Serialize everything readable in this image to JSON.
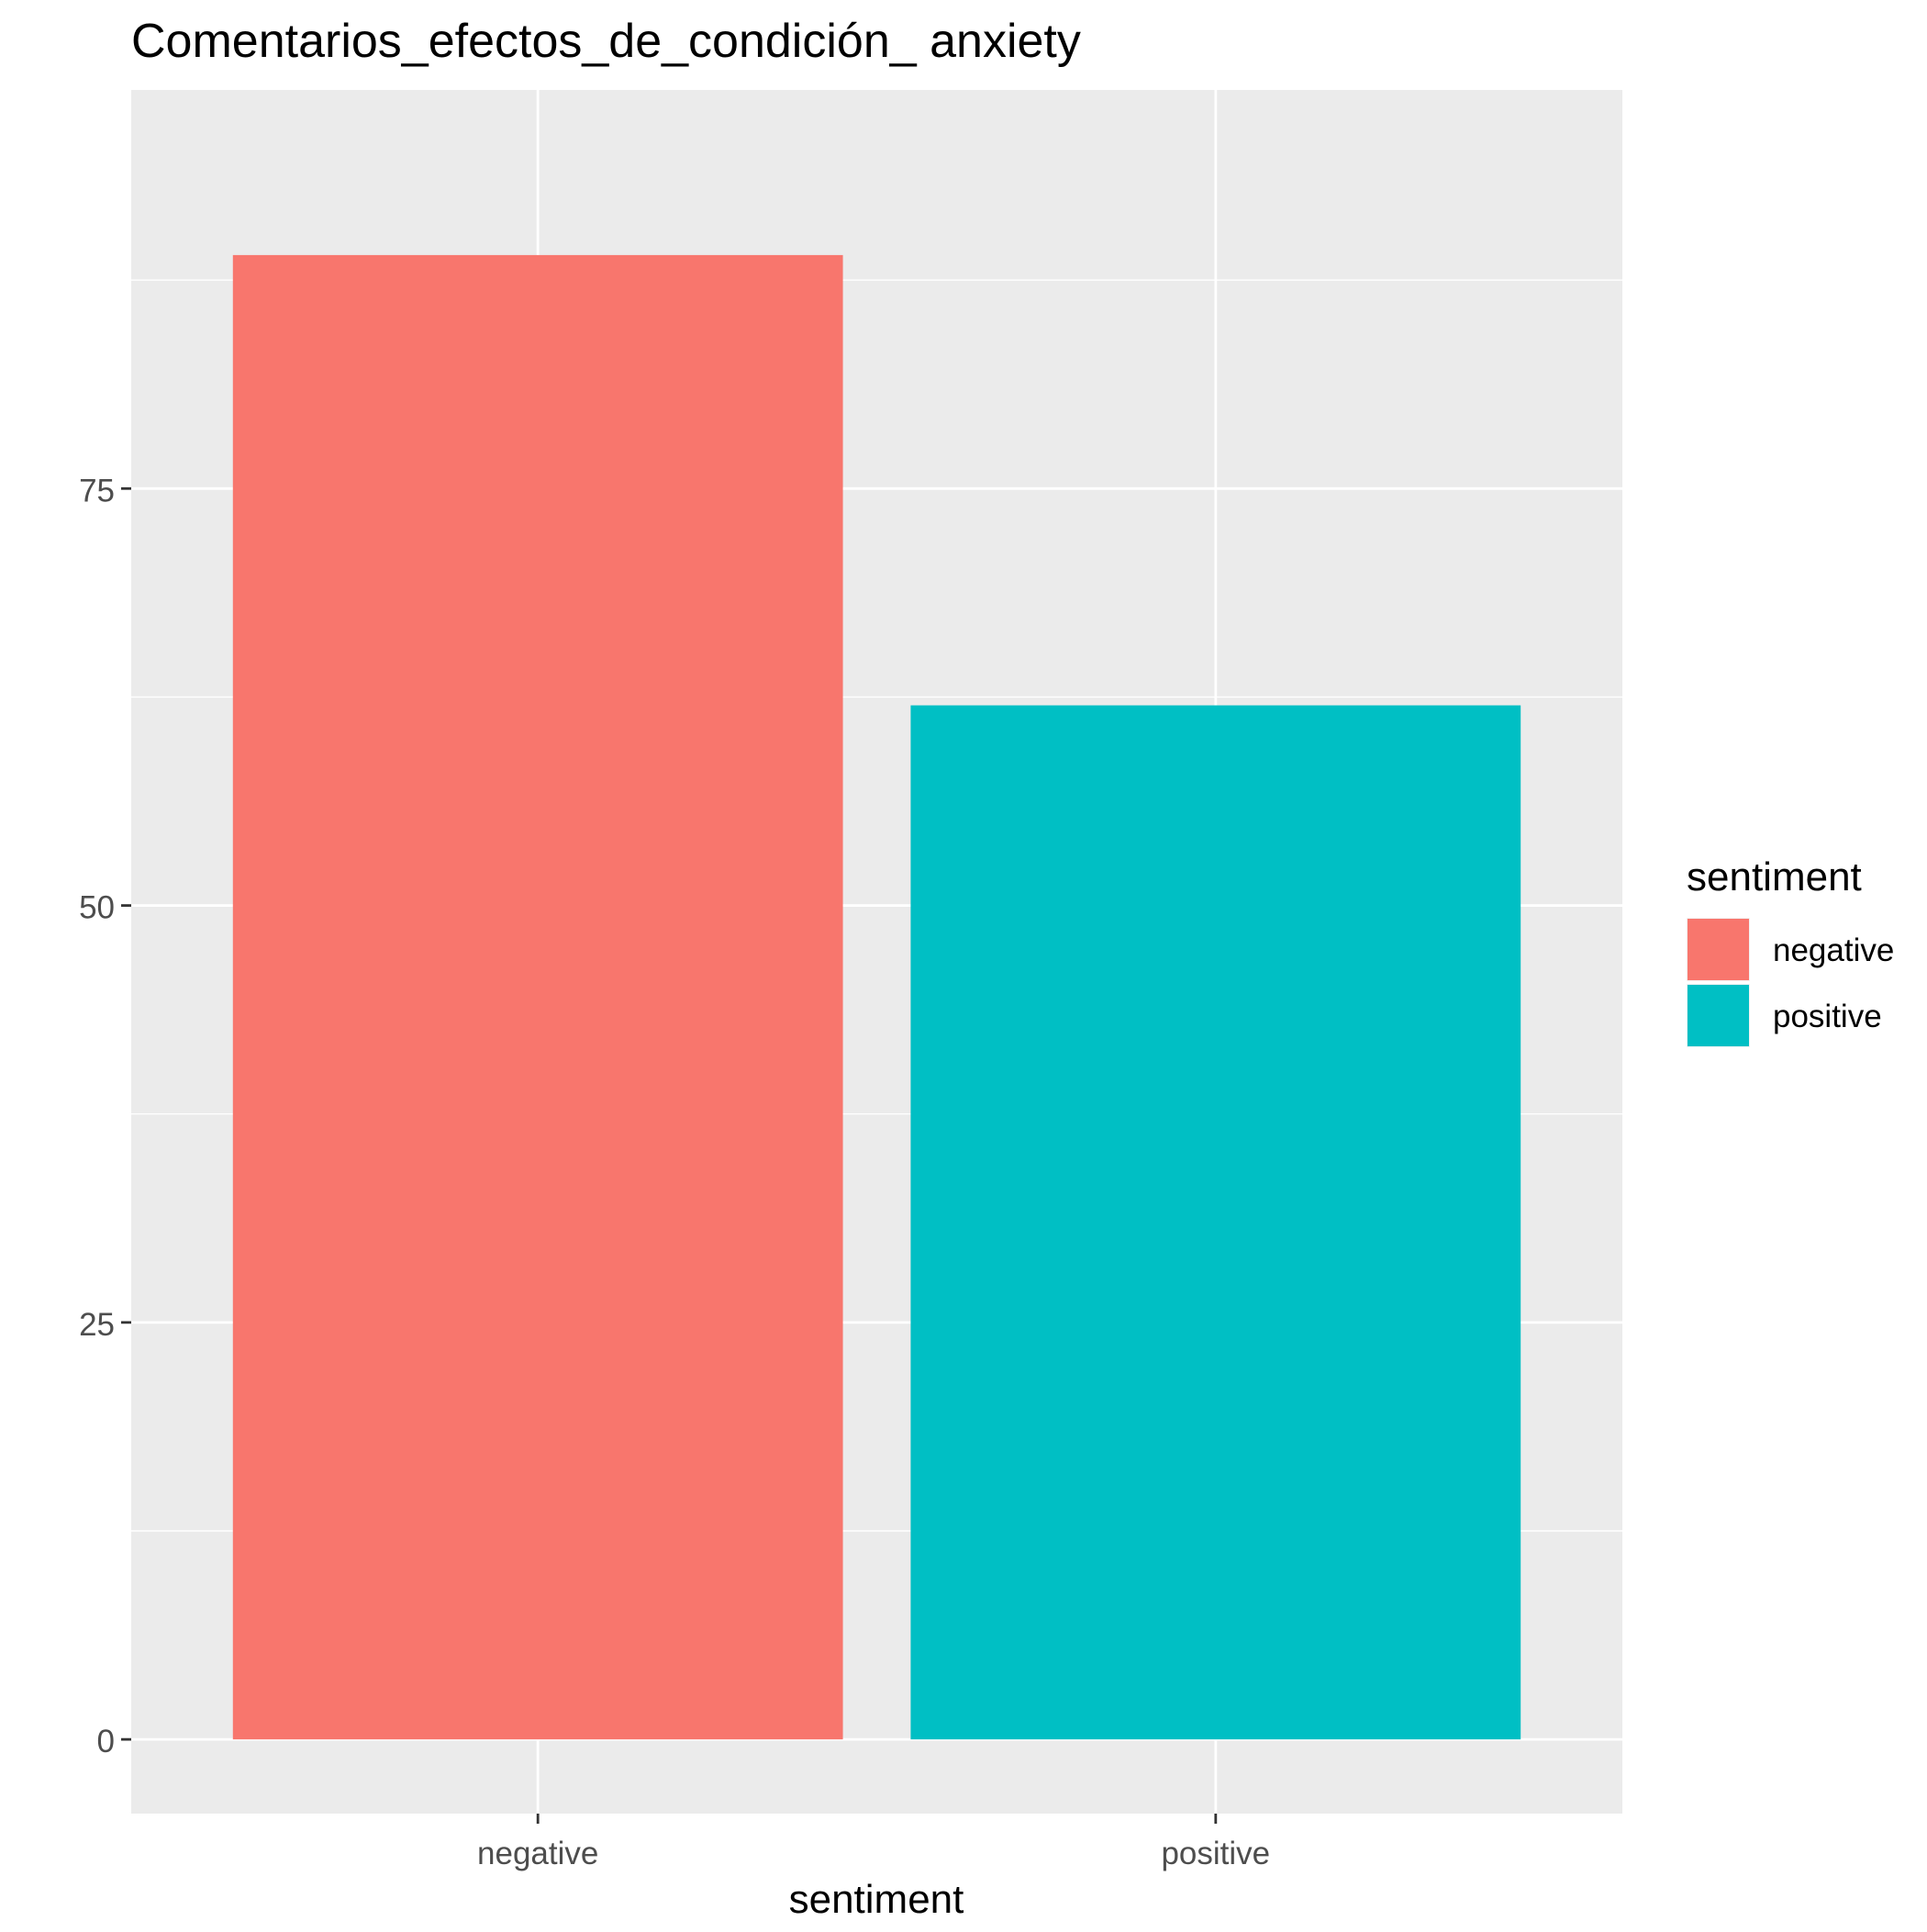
{
  "chart_data": {
    "type": "bar",
    "title": "Comentarios_efectos_de_condición_ anxiety",
    "xlabel": "sentiment",
    "ylabel": "",
    "categories": [
      "negative",
      "positive"
    ],
    "values": [
      89,
      62
    ],
    "colors": [
      "#F8766D",
      "#00BFC4"
    ],
    "ylim": [
      -4.45,
      98.9
    ],
    "yticks": [
      0,
      25,
      50,
      75
    ],
    "ytick_labels": [
      "0",
      "25",
      "50",
      "75"
    ],
    "grid": true,
    "panel_background": "#EBEBEB",
    "grid_color": "#FFFFFF",
    "legend": {
      "title": "sentiment",
      "position": "right",
      "entries": [
        {
          "label": "negative",
          "color": "#F8766D"
        },
        {
          "label": "positive",
          "color": "#00BFC4"
        }
      ]
    }
  }
}
